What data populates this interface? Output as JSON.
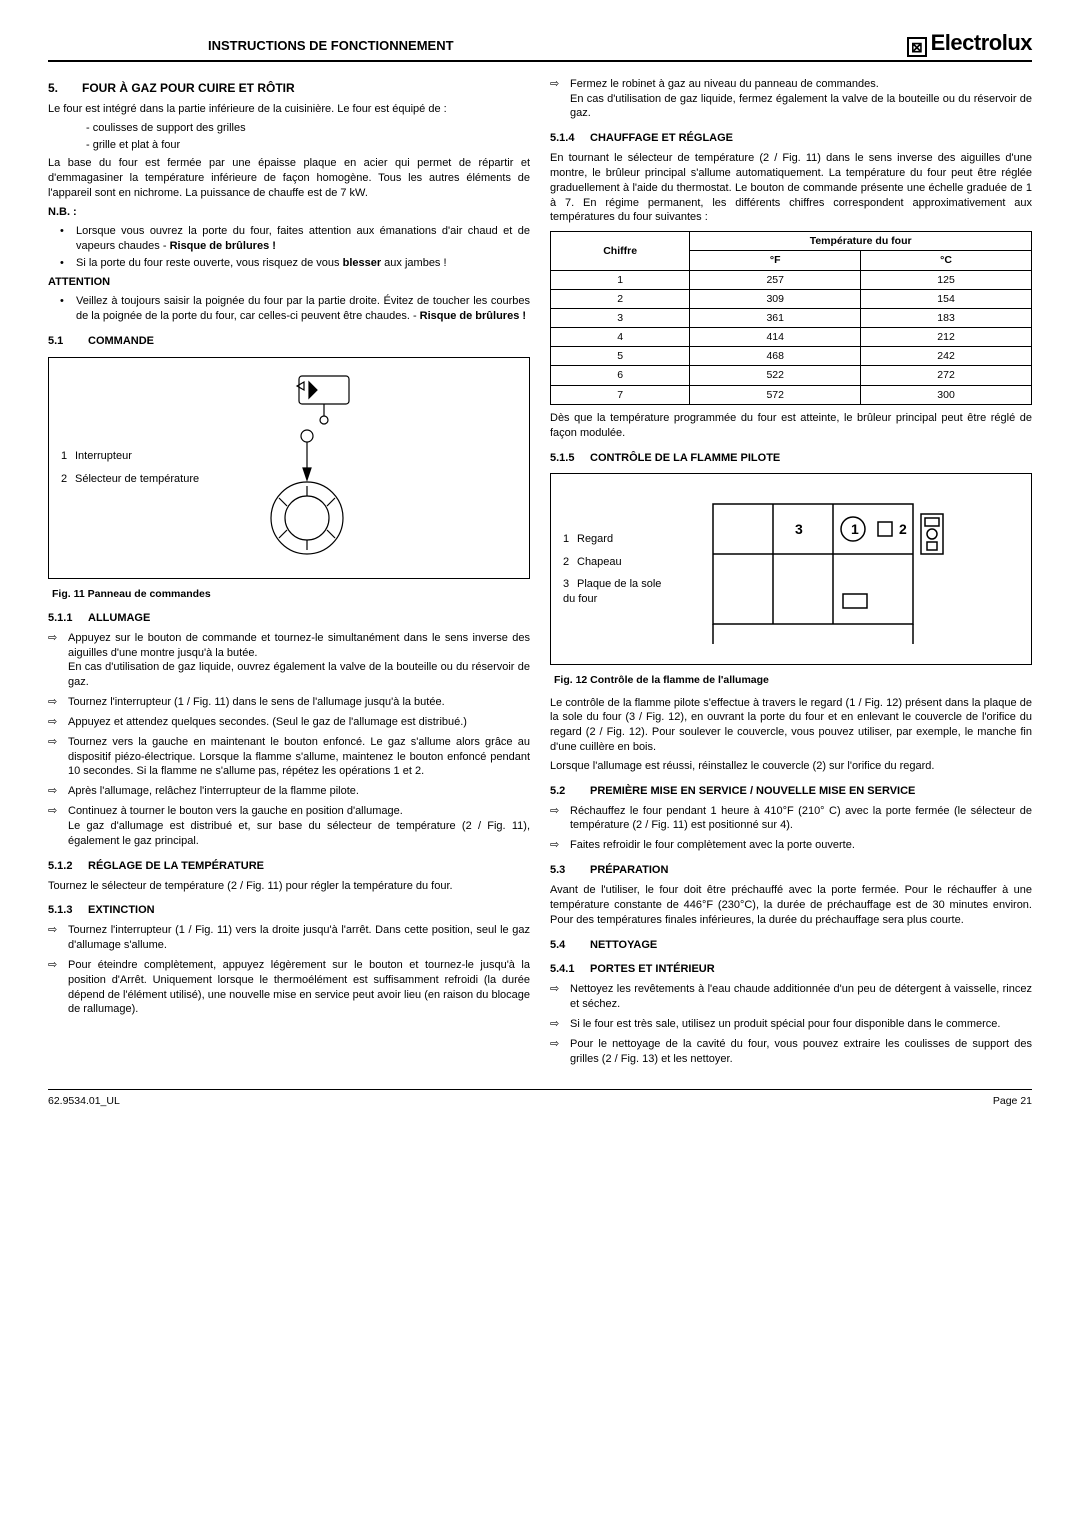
{
  "header": {
    "title": "INSTRUCTIONS DE FONCTIONNEMENT",
    "brand": "Electrolux"
  },
  "s5": {
    "num": "5.",
    "title": "FOUR À GAZ POUR CUIRE ET RÔTIR",
    "intro": "Le four est intégré dans la partie inférieure de la cuisinière. Le four est équipé de :",
    "equip1": "coulisses de support des grilles",
    "equip2": "grille et plat à four",
    "base": "La base du four est fermée par une épaisse plaque en acier qui permet de répartir et d'emmagasiner la température inférieure de façon homogène. Tous les autres éléments de l'appareil sont en nichrome. La puissance de chauffe est de 7 kW.",
    "nb": "N.B. :",
    "nb1a": "Lorsque vous ouvrez la porte du four, faites attention aux émanations d'air chaud et de vapeurs chaudes - ",
    "nb1b": "Risque de brûlures !",
    "nb2a": "Si la porte du four reste ouverte, vous risquez de vous ",
    "nb2b": "blesser",
    "nb2c": " aux jambes !",
    "att": "ATTENTION",
    "att1a": "Veillez à toujours saisir la poignée du four par la partie droite. Évitez de toucher les courbes de la poignée de la porte du four, car celles-ci peuvent être chaudes.  - ",
    "att1b": "Risque de brûlures !"
  },
  "s51": {
    "num": "5.1",
    "title": "COMMANDE",
    "leg1": "Interrupteur",
    "leg2": "Sélecteur de température",
    "cap": "Fig. 11  Panneau de commandes"
  },
  "s511": {
    "num": "5.1.1",
    "title": "ALLUMAGE",
    "i1": "Appuyez sur le bouton de commande et tournez-le simultanément dans le sens inverse des aiguilles d'une montre jusqu'à la butée.",
    "i1b": "En cas d'utilisation de gaz liquide, ouvrez également la valve de la bouteille ou du réservoir de gaz.",
    "i2": "Tournez l'interrupteur (1 / Fig. 11) dans le sens de l'allumage jusqu'à la butée.",
    "i3": "Appuyez et attendez quelques secondes. (Seul le gaz de l'allumage est distribué.)",
    "i4": "Tournez vers la gauche en maintenant le bouton enfoncé. Le gaz s'allume alors grâce au dispositif piézo-électrique. Lorsque la flamme s'allume, maintenez le bouton enfoncé pendant 10 secondes. Si la flamme ne s'allume pas, répétez les opérations 1 et 2.",
    "i5": "Après l'allumage, relâchez l'interrupteur de la flamme pilote.",
    "i6": "Continuez à tourner le bouton vers la gauche en position d'allumage.",
    "i6b": "Le gaz d'allumage est distribué et, sur base du sélecteur de température (2 / Fig. 11), également le gaz principal."
  },
  "s512": {
    "num": "5.1.2",
    "title": "RÉGLAGE DE LA TEMPÉRATURE",
    "p": "Tournez le sélecteur de température (2 / Fig. 11) pour régler la température du four."
  },
  "s513": {
    "num": "5.1.3",
    "title": "EXTINCTION",
    "i1": "Tournez l'interrupteur (1 / Fig. 11) vers la droite jusqu'à l'arrêt. Dans cette position, seul le gaz d'allumage s'allume.",
    "i2": "Pour éteindre complètement, appuyez légèrement sur le bouton et tournez-le jusqu'à la position d'Arrêt. Uniquement lorsque le thermoélément est suffisamment refroidi (la durée dépend de l'élément utilisé), une nouvelle mise en service peut avoir lieu (en raison du blocage de rallumage).",
    "i3": "Fermez le robinet à gaz au niveau du panneau de commandes.",
    "i3b": "En cas d'utilisation de gaz liquide, fermez également la valve de la bouteille ou du réservoir de gaz."
  },
  "s514": {
    "num": "5.1.4",
    "title": "CHAUFFAGE ET RÉGLAGE",
    "p": "En tournant le sélecteur de température (2 / Fig. 11) dans le sens inverse des aiguilles d'une montre, le brûleur principal s'allume automatiquement. La température du four peut être réglée graduellement à l'aide du thermostat. Le bouton de commande présente une échelle graduée de 1 à 7. En régime permanent, les différents chiffres correspondent approximativement aux températures du four suivantes :",
    "table": {
      "h1": "Chiffre",
      "h2": "Température du four",
      "hf": "°F",
      "hc": "°C",
      "rows": [
        [
          "1",
          "257",
          "125"
        ],
        [
          "2",
          "309",
          "154"
        ],
        [
          "3",
          "361",
          "183"
        ],
        [
          "4",
          "414",
          "212"
        ],
        [
          "5",
          "468",
          "242"
        ],
        [
          "6",
          "522",
          "272"
        ],
        [
          "7",
          "572",
          "300"
        ]
      ]
    },
    "after": "Dès que la température programmée du four est atteinte, le brûleur principal peut être réglé de façon modulée."
  },
  "s515": {
    "num": "5.1.5",
    "title": "CONTRÔLE DE LA FLAMME PILOTE",
    "leg1": "Regard",
    "leg2": "Chapeau",
    "leg3": "Plaque de la sole du four",
    "cap": "Fig. 12  Contrôle de la flamme de l'allumage",
    "p1": "Le contrôle de la flamme pilote s'effectue à travers le regard (1 / Fig. 12) présent dans la plaque de la sole du four (3 / Fig. 12), en ouvrant la porte du four et en enlevant le couvercle de l'orifice du regard (2 / Fig. 12). Pour soulever le couvercle, vous pouvez utiliser, par exemple, le manche fin d'une cuillère en bois.",
    "p2": "Lorsque l'allumage est réussi, réinstallez le couvercle (2) sur l'orifice du regard."
  },
  "s52": {
    "num": "5.2",
    "title": "PREMIÈRE MISE EN SERVICE / NOUVELLE MISE EN SERVICE",
    "i1": "Réchauffez le four pendant 1 heure à  410°F (210° C) avec la porte fermée (le sélecteur de température (2 / Fig. 11) est positionné sur 4).",
    "i2": "Faites refroidir le four complètement avec la porte ouverte."
  },
  "s53": {
    "num": "5.3",
    "title": "PRÉPARATION",
    "p": "Avant de l'utiliser, le four doit être préchauffé avec la porte fermée. Pour le réchauffer à une température constante de 446°F (230°C), la durée de préchauffage est de 30 minutes environ. Pour des températures finales inférieures, la durée du préchauffage sera plus courte."
  },
  "s54": {
    "num": "5.4",
    "title": "NETTOYAGE"
  },
  "s541": {
    "num": "5.4.1",
    "title": "PORTES ET INTÉRIEUR",
    "i1": "Nettoyez les revêtements à l'eau chaude additionnée d'un peu de détergent à vaisselle, rincez et séchez.",
    "i2": "Si le four est très sale, utilisez un produit spécial pour four disponible dans le commerce.",
    "i3": "Pour le nettoyage de la cavité du four, vous pouvez extraire les coulisses de support des grilles (2 / Fig. 13) et les nettoyer."
  },
  "footer": {
    "left": "62.9534.01_UL",
    "right": "Page 21"
  }
}
